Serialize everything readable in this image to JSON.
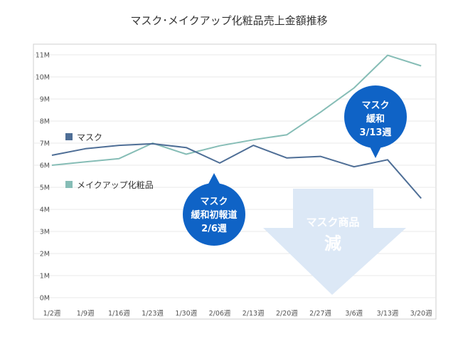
{
  "chart_data": {
    "type": "line",
    "title": "マスク･メイクアップ化粧品売上金額推移",
    "categories": [
      "1/2週",
      "1/9週",
      "1/16週",
      "1/23週",
      "1/30週",
      "2/06週",
      "2/13週",
      "2/20週",
      "2/27週",
      "3/6週",
      "3/13週",
      "3/20週"
    ],
    "y_ticks": [
      "0M",
      "1M",
      "2M",
      "3M",
      "4M",
      "5M",
      "6M",
      "7M",
      "8M",
      "9M",
      "10M",
      "11M"
    ],
    "ylim": [
      0,
      11.5
    ],
    "grid": true,
    "series": [
      {
        "name": "マスク",
        "color": "#4e6e96",
        "values": [
          6.45,
          6.75,
          6.9,
          6.97,
          6.8,
          6.1,
          6.9,
          6.33,
          6.4,
          5.93,
          6.25,
          4.5
        ]
      },
      {
        "name": "メイクアップ化粧品",
        "color": "#86bdb6",
        "values": [
          6.0,
          6.15,
          6.3,
          7.0,
          6.5,
          6.88,
          7.15,
          7.38,
          8.4,
          9.5,
          10.98,
          10.5
        ]
      }
    ],
    "annotations": [
      {
        "lines": [
          "マスク",
          "緩和初報道",
          "2/6週"
        ],
        "at_category": "2/06週",
        "series": "マスク"
      },
      {
        "lines": [
          "マスク",
          "緩和",
          "3/13週"
        ],
        "at_category": "3/13週",
        "series": "マスク"
      }
    ],
    "arrow": {
      "line1": "マスク商品",
      "line2": "減"
    }
  },
  "colors": {
    "callout": "#0f63c6",
    "arrow": "#dce8f6",
    "arrow_text": "#ffffff",
    "grid": "#e8e8e8",
    "frame": "#cfcfcf"
  }
}
